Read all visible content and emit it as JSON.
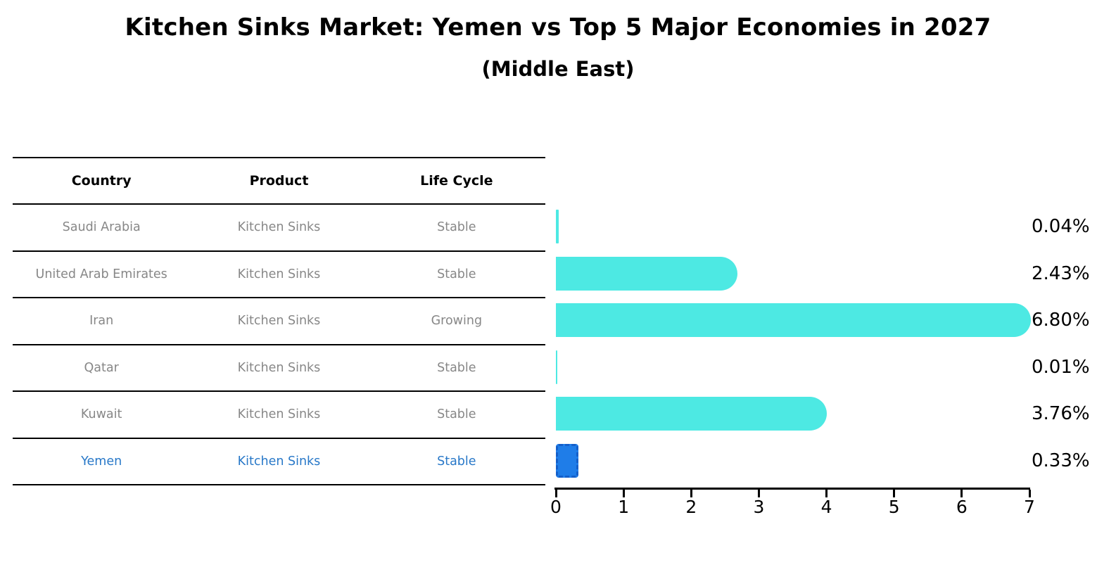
{
  "title": "Kitchen Sinks Market: Yemen vs Top 5 Major Economies in 2027",
  "subtitle": "(Middle East)",
  "table": {
    "headers": [
      "Country",
      "Product",
      "Life Cycle"
    ],
    "rows": [
      {
        "country": "Saudi Arabia",
        "product": "Kitchen Sinks",
        "life_cycle": "Stable",
        "highlight": false
      },
      {
        "country": "United Arab Emirates",
        "product": "Kitchen Sinks",
        "life_cycle": "Stable",
        "highlight": false
      },
      {
        "country": "Iran",
        "product": "Kitchen Sinks",
        "life_cycle": "Growing",
        "highlight": false
      },
      {
        "country": "Qatar",
        "product": "Kitchen Sinks",
        "life_cycle": "Stable",
        "highlight": false
      },
      {
        "country": "Kuwait",
        "product": "Kitchen Sinks",
        "life_cycle": "Stable",
        "highlight": false
      },
      {
        "country": "Yemen",
        "product": "Kitchen Sinks",
        "life_cycle": "Stable",
        "highlight": true
      }
    ]
  },
  "chart_data": {
    "type": "bar",
    "orientation": "horizontal",
    "title": "Kitchen Sinks Market: Yemen vs Top 5 Major Economies in 2027",
    "subtitle": "(Middle East)",
    "categories": [
      "Saudi Arabia",
      "United Arab Emirates",
      "Iran",
      "Qatar",
      "Kuwait",
      "Yemen"
    ],
    "values": [
      0.04,
      2.43,
      6.8,
      0.01,
      3.76,
      0.33
    ],
    "value_labels": [
      "0.04%",
      "2.43%",
      "6.80%",
      "0.01%",
      "3.76%",
      "0.33%"
    ],
    "highlight_index": 5,
    "highlight_category": "Yemen",
    "xlim": [
      0,
      7
    ],
    "x_ticks": [
      0,
      1,
      2,
      3,
      4,
      5,
      6,
      7
    ],
    "grid": false,
    "legend": false
  },
  "colors": {
    "bar_default": "#4de9e3",
    "bar_highlight": "#1f7de8",
    "bar_highlight_border": "#155fc9",
    "row_text": "#878787",
    "highlight_text": "#2878c8",
    "header_text": "#000000",
    "axis": "#000000",
    "background": "#ffffff"
  }
}
